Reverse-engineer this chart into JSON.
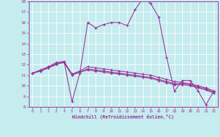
{
  "xlabel": "Windchill (Refroidissement éolien,°C)",
  "xlim": [
    -0.5,
    23.5
  ],
  "ylim": [
    8,
    18
  ],
  "xticks": [
    0,
    1,
    2,
    3,
    4,
    5,
    6,
    7,
    8,
    9,
    10,
    11,
    12,
    13,
    14,
    15,
    16,
    17,
    18,
    19,
    20,
    21,
    22,
    23
  ],
  "yticks": [
    8,
    9,
    10,
    11,
    12,
    13,
    14,
    15,
    16,
    17,
    18
  ],
  "bg_color": "#c5ecee",
  "grid_color": "#ffffff",
  "line_color": "#993399",
  "line1": [
    11.2,
    11.4,
    11.7,
    12.0,
    12.3,
    8.5,
    11.2,
    16.0,
    15.5,
    15.8,
    16.0,
    16.0,
    15.7,
    17.2,
    18.3,
    17.8,
    16.5,
    12.7,
    9.5,
    10.5,
    10.5,
    9.5,
    8.2,
    9.5
  ],
  "line2": [
    11.2,
    11.4,
    11.7,
    12.1,
    12.2,
    11.1,
    11.3,
    11.5,
    11.4,
    11.3,
    11.2,
    11.1,
    11.0,
    10.9,
    10.8,
    10.7,
    10.5,
    10.3,
    10.1,
    10.1,
    10.0,
    9.8,
    9.6,
    9.3
  ],
  "line3": [
    11.2,
    11.4,
    11.7,
    12.1,
    12.2,
    11.0,
    11.3,
    11.6,
    11.5,
    11.4,
    11.3,
    11.2,
    11.1,
    11.0,
    10.9,
    10.8,
    10.6,
    10.4,
    10.2,
    10.2,
    10.1,
    9.9,
    9.7,
    9.4
  ],
  "line4": [
    11.2,
    11.5,
    11.8,
    12.2,
    12.3,
    11.1,
    11.4,
    11.8,
    11.7,
    11.6,
    11.5,
    11.4,
    11.3,
    11.2,
    11.1,
    11.0,
    10.8,
    10.6,
    10.4,
    10.3,
    10.2,
    10.0,
    9.8,
    9.5
  ]
}
